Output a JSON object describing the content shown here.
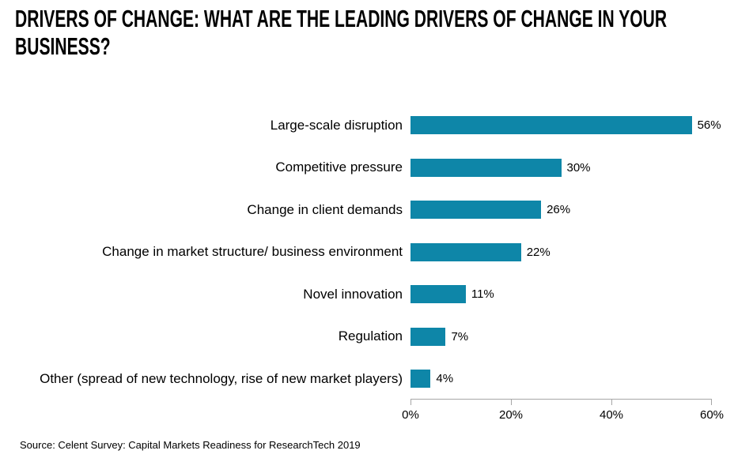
{
  "header": {
    "title_line1": "DRIVERS OF CHANGE: WHAT ARE THE LEADING DRIVERS OF CHANGE IN YOUR",
    "title_line2": "BUSINESS?"
  },
  "footer": {
    "source": "Source: Celent Survey: Capital Markets Readiness for ResearchTech 2019"
  },
  "colors": {
    "bar": "#0E86A8",
    "axis_line": "#A6A6A6",
    "text": "#000000"
  },
  "chart_data": {
    "type": "bar",
    "orientation": "horizontal",
    "title": "DRIVERS OF CHANGE: WHAT ARE THE LEADING DRIVERS OF CHANGE IN YOUR BUSINESS?",
    "categories": [
      "Large-scale disruption",
      "Competitive pressure",
      "Change in client demands",
      "Change in market structure/ business environment",
      "Novel innovation",
      "Regulation",
      "Other (spread of  new technology, rise of new market players)"
    ],
    "values": [
      56,
      30,
      26,
      22,
      11,
      7,
      4
    ],
    "value_labels": [
      "56%",
      "30%",
      "26%",
      "22%",
      "11%",
      "7%",
      "4%"
    ],
    "xlabel": "",
    "ylabel": "",
    "xlim": [
      0,
      60
    ],
    "x_tick_values": [
      0,
      20,
      40,
      60
    ],
    "x_tick_labels": [
      "0%",
      "20%",
      "40%",
      "60%"
    ],
    "grid": false,
    "legend": false,
    "bar_color": "#0E86A8"
  }
}
